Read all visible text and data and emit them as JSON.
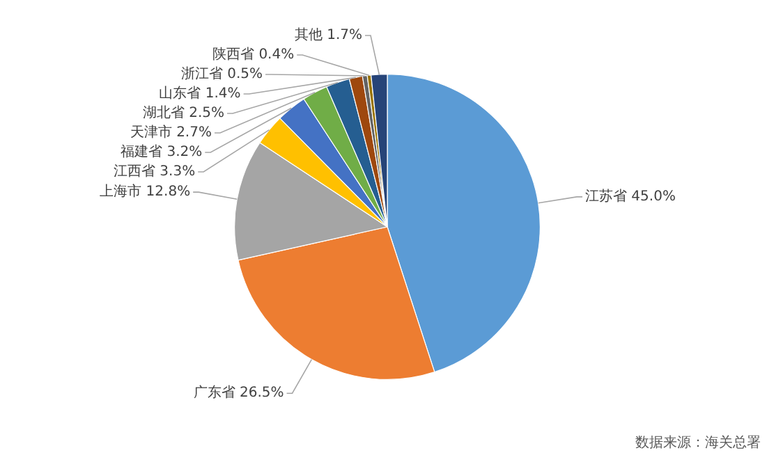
{
  "chart_data": {
    "type": "pie",
    "categories": [
      "江苏省",
      "广东省",
      "上海市",
      "江西省",
      "福建省",
      "天津市",
      "湖北省",
      "山东省",
      "浙江省",
      "陕西省",
      "其他"
    ],
    "values": [
      45.0,
      26.5,
      12.8,
      3.3,
      3.2,
      2.7,
      2.5,
      1.4,
      0.5,
      0.4,
      1.7
    ],
    "value_labels": [
      "45.0%",
      "26.5%",
      "12.8%",
      "3.3%",
      "3.2%",
      "2.7%",
      "2.5%",
      "1.4%",
      "0.5%",
      "0.4%",
      "1.7%"
    ],
    "colors": [
      "#5b9bd5",
      "#ed7d31",
      "#a5a5a5",
      "#ffc000",
      "#4472c4",
      "#70ad47",
      "#255e91",
      "#9e480e",
      "#636363",
      "#997300",
      "#264478"
    ],
    "legend": false,
    "annotations": [
      "数据来源：海关总署"
    ]
  }
}
